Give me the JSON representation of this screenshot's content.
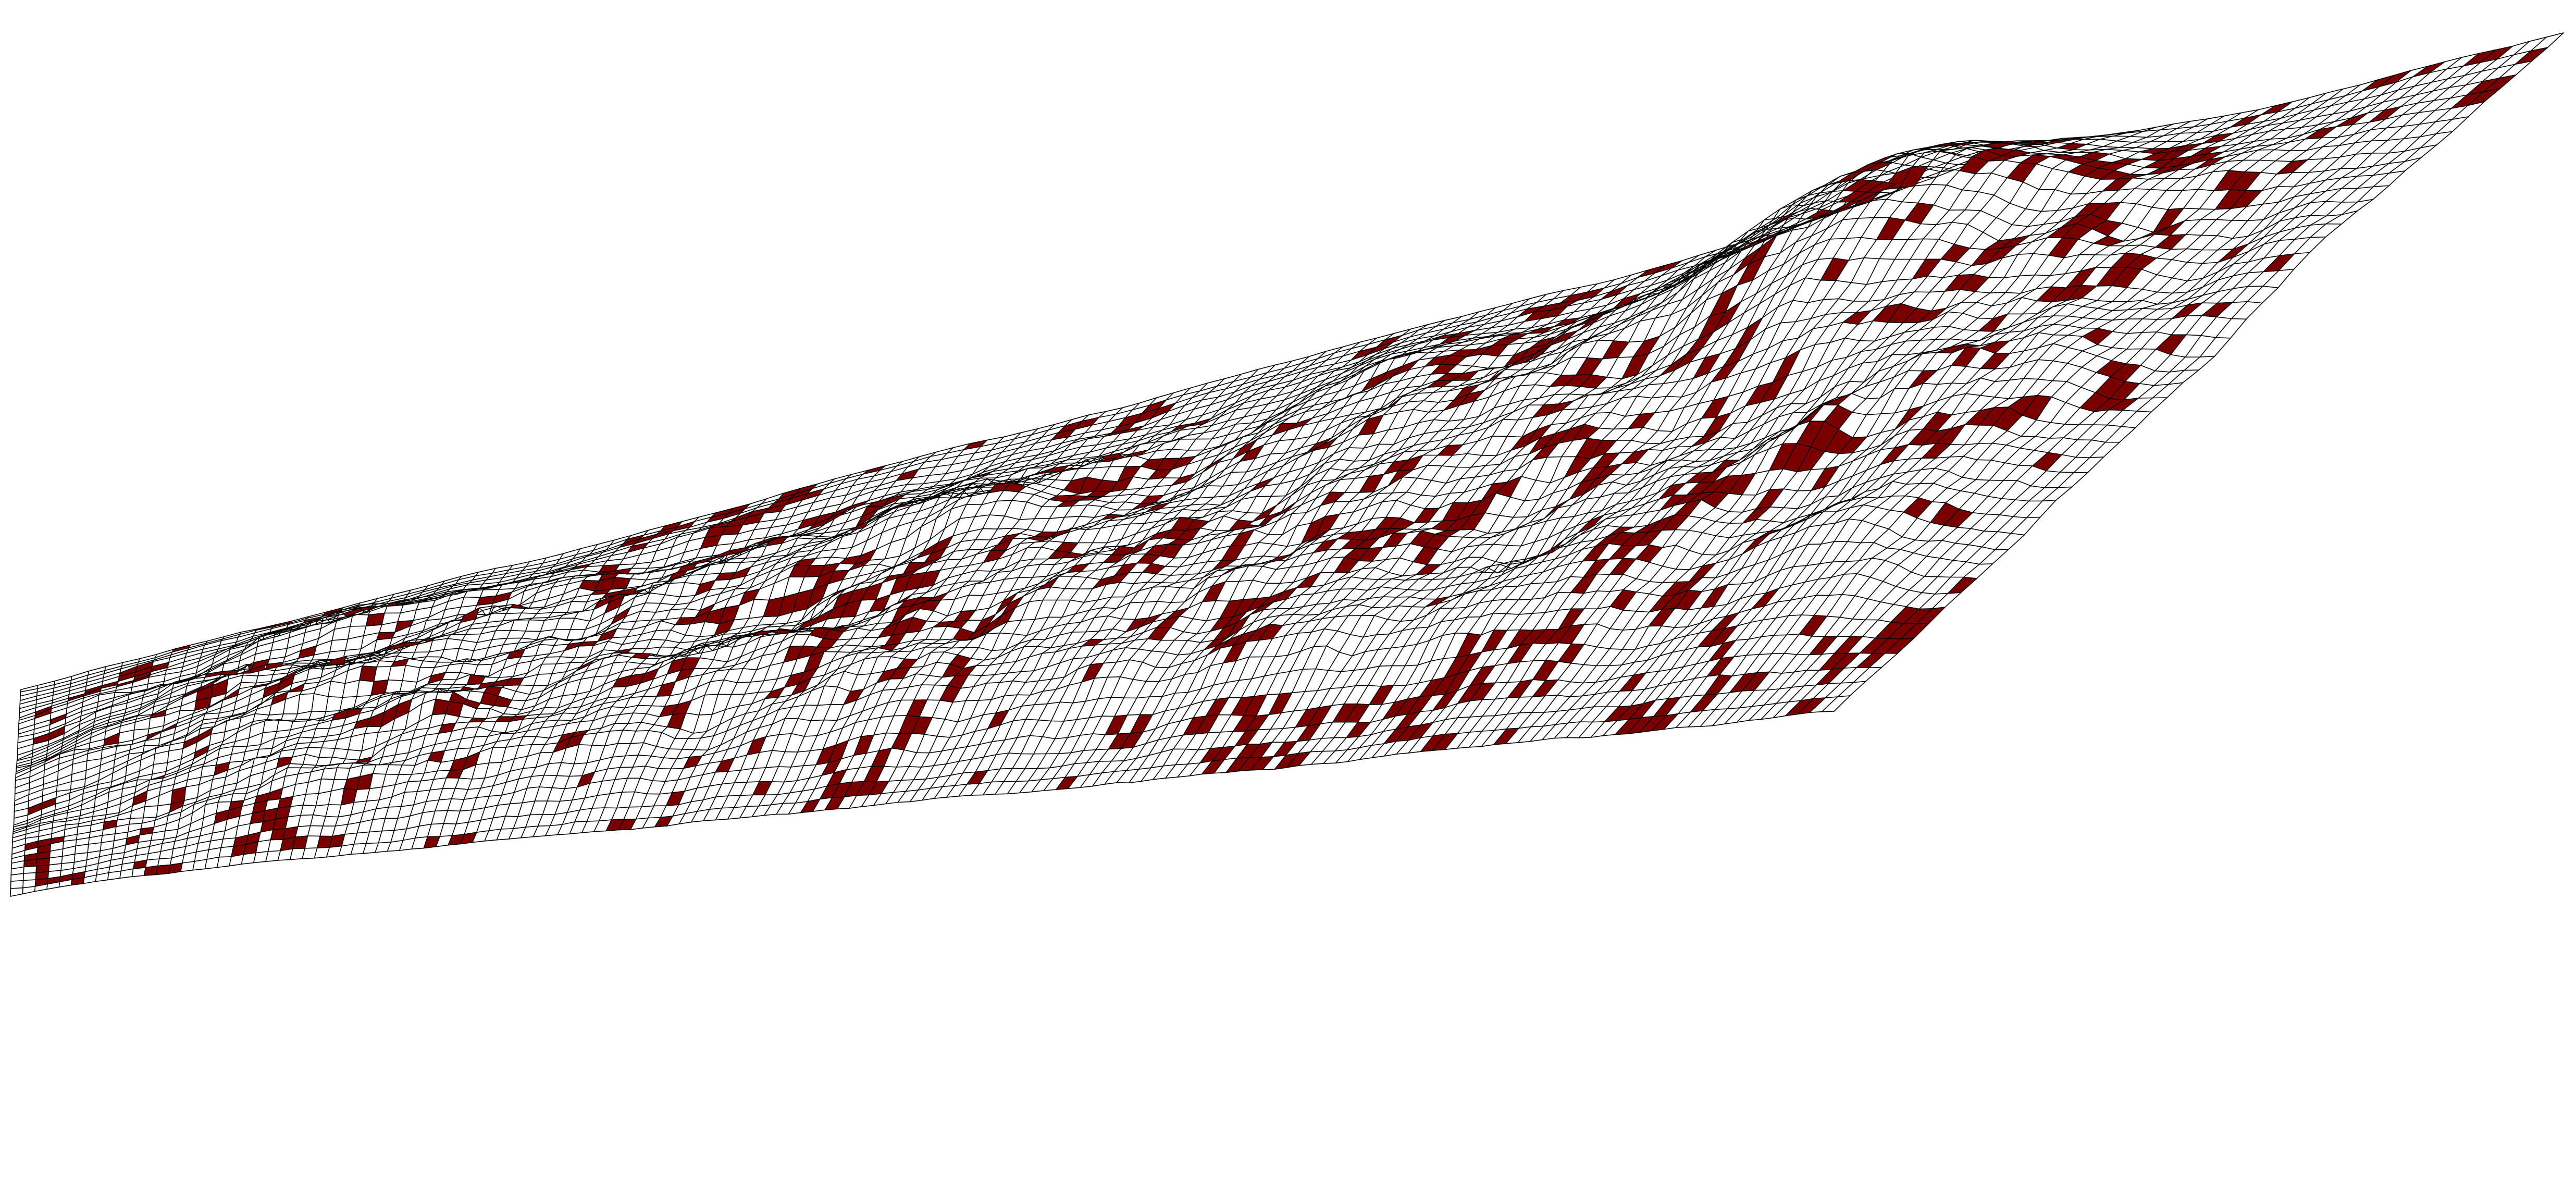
{
  "figure": {
    "kind": "3d-wireframe-terrain-surface",
    "background_color": "#ffffff",
    "mesh_color": "#000000",
    "surface_color": "#ffffff",
    "highlight_color": "#7a0000",
    "text_labels": []
  }
}
